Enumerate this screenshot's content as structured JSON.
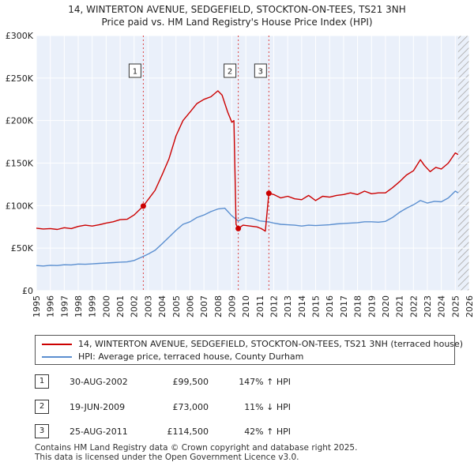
{
  "title": {
    "line1": "14, WINTERTON AVENUE, SEDGEFIELD, STOCKTON-ON-TEES, TS21 3NH",
    "line2": "Price paid vs. HM Land Registry's House Price Index (HPI)"
  },
  "chart_data": {
    "type": "line",
    "x_range": [
      1995,
      2026
    ],
    "ylim": [
      0,
      300000
    ],
    "y_ticks": [
      {
        "value": 0,
        "label": "£0"
      },
      {
        "value": 50000,
        "label": "£50K"
      },
      {
        "value": 100000,
        "label": "£100K"
      },
      {
        "value": 150000,
        "label": "£150K"
      },
      {
        "value": 200000,
        "label": "£200K"
      },
      {
        "value": 250000,
        "label": "£250K"
      },
      {
        "value": 300000,
        "label": "£300K"
      }
    ],
    "x_ticks": [
      "1995",
      "1996",
      "1997",
      "1998",
      "1999",
      "2000",
      "2001",
      "2002",
      "2003",
      "2004",
      "2005",
      "2006",
      "2007",
      "2008",
      "2009",
      "2010",
      "2011",
      "2012",
      "2013",
      "2014",
      "2015",
      "2016",
      "2017",
      "2018",
      "2019",
      "2020",
      "2021",
      "2022",
      "2023",
      "2024",
      "2025",
      "2026"
    ],
    "future_from": 2025.2,
    "series": [
      {
        "name": "14, WINTERTON AVENUE, SEDGEFIELD, STOCKTON-ON-TEES, TS21 3NH (terraced house)",
        "color": "#cc0000",
        "points": [
          [
            1995.0,
            73500
          ],
          [
            1995.5,
            72500
          ],
          [
            1996.0,
            73000
          ],
          [
            1996.5,
            72000
          ],
          [
            1997.0,
            74000
          ],
          [
            1997.5,
            73000
          ],
          [
            1998.0,
            75500
          ],
          [
            1998.5,
            77000
          ],
          [
            1999.0,
            76000
          ],
          [
            1999.5,
            77500
          ],
          [
            2000.0,
            79500
          ],
          [
            2000.5,
            81000
          ],
          [
            2001.0,
            83500
          ],
          [
            2001.5,
            84000
          ],
          [
            2002.0,
            89000
          ],
          [
            2002.66,
            99500
          ],
          [
            2003.0,
            107000
          ],
          [
            2003.5,
            118000
          ],
          [
            2004.0,
            136000
          ],
          [
            2004.5,
            155000
          ],
          [
            2005.0,
            182000
          ],
          [
            2005.5,
            200000
          ],
          [
            2006.0,
            210000
          ],
          [
            2006.5,
            220000
          ],
          [
            2007.0,
            225000
          ],
          [
            2007.5,
            228000
          ],
          [
            2008.0,
            235000
          ],
          [
            2008.3,
            230000
          ],
          [
            2008.7,
            210000
          ],
          [
            2009.0,
            198000
          ],
          [
            2009.15,
            200000
          ],
          [
            2009.3,
            78000
          ],
          [
            2009.46,
            73000
          ],
          [
            2009.8,
            77000
          ],
          [
            2010.3,
            76000
          ],
          [
            2010.8,
            75000
          ],
          [
            2011.1,
            73000
          ],
          [
            2011.4,
            70000
          ],
          [
            2011.65,
            114500
          ],
          [
            2012.0,
            113000
          ],
          [
            2012.5,
            109000
          ],
          [
            2013.0,
            111000
          ],
          [
            2013.5,
            108000
          ],
          [
            2014.0,
            107000
          ],
          [
            2014.5,
            112000
          ],
          [
            2015.0,
            106000
          ],
          [
            2015.5,
            111000
          ],
          [
            2016.0,
            110000
          ],
          [
            2016.5,
            112000
          ],
          [
            2017.0,
            113000
          ],
          [
            2017.5,
            115000
          ],
          [
            2018.0,
            113000
          ],
          [
            2018.5,
            117000
          ],
          [
            2019.0,
            114000
          ],
          [
            2019.5,
            115000
          ],
          [
            2020.0,
            115000
          ],
          [
            2020.5,
            121000
          ],
          [
            2021.0,
            128000
          ],
          [
            2021.5,
            136000
          ],
          [
            2022.0,
            141000
          ],
          [
            2022.5,
            154000
          ],
          [
            2022.8,
            147000
          ],
          [
            2023.2,
            140000
          ],
          [
            2023.6,
            145000
          ],
          [
            2024.0,
            143000
          ],
          [
            2024.5,
            150000
          ],
          [
            2025.0,
            162000
          ],
          [
            2025.2,
            160000
          ]
        ]
      },
      {
        "name": "HPI: Average price, terraced house, County Durham",
        "color": "#5b8fd0",
        "points": [
          [
            1995.0,
            29500
          ],
          [
            1995.5,
            29000
          ],
          [
            1996.0,
            29800
          ],
          [
            1996.5,
            29500
          ],
          [
            1997.0,
            30500
          ],
          [
            1997.5,
            30300
          ],
          [
            1998.0,
            31300
          ],
          [
            1998.5,
            31000
          ],
          [
            1999.0,
            31500
          ],
          [
            1999.5,
            32000
          ],
          [
            2000.0,
            32500
          ],
          [
            2000.5,
            33000
          ],
          [
            2001.0,
            33500
          ],
          [
            2001.5,
            33800
          ],
          [
            2002.0,
            35500
          ],
          [
            2002.66,
            40300
          ],
          [
            2003.0,
            43000
          ],
          [
            2003.5,
            47500
          ],
          [
            2004.0,
            55000
          ],
          [
            2004.5,
            63000
          ],
          [
            2005.0,
            71000
          ],
          [
            2005.5,
            78000
          ],
          [
            2006.0,
            81000
          ],
          [
            2006.5,
            86000
          ],
          [
            2007.0,
            89000
          ],
          [
            2007.5,
            93000
          ],
          [
            2008.0,
            96000
          ],
          [
            2008.5,
            97000
          ],
          [
            2009.0,
            88000
          ],
          [
            2009.46,
            82000
          ],
          [
            2010.0,
            86000
          ],
          [
            2010.5,
            85000
          ],
          [
            2011.0,
            82000
          ],
          [
            2011.65,
            80800
          ],
          [
            2012.0,
            79500
          ],
          [
            2012.5,
            78000
          ],
          [
            2013.0,
            77500
          ],
          [
            2013.5,
            77000
          ],
          [
            2014.0,
            76000
          ],
          [
            2014.5,
            77000
          ],
          [
            2015.0,
            76500
          ],
          [
            2015.5,
            77000
          ],
          [
            2016.0,
            77500
          ],
          [
            2016.5,
            78500
          ],
          [
            2017.0,
            79000
          ],
          [
            2017.5,
            79500
          ],
          [
            2018.0,
            80000
          ],
          [
            2018.5,
            81000
          ],
          [
            2019.0,
            81000
          ],
          [
            2019.5,
            80500
          ],
          [
            2020.0,
            81500
          ],
          [
            2020.5,
            86000
          ],
          [
            2021.0,
            92000
          ],
          [
            2021.5,
            97000
          ],
          [
            2022.0,
            101000
          ],
          [
            2022.5,
            106000
          ],
          [
            2023.0,
            103000
          ],
          [
            2023.5,
            105000
          ],
          [
            2024.0,
            104500
          ],
          [
            2024.5,
            109000
          ],
          [
            2025.0,
            117000
          ],
          [
            2025.2,
            115000
          ]
        ]
      }
    ],
    "transactions": [
      {
        "id": "1",
        "x": 2002.66,
        "price": 99500
      },
      {
        "id": "2",
        "x": 2009.46,
        "price": 73000
      },
      {
        "id": "3",
        "x": 2011.65,
        "price": 114500
      }
    ]
  },
  "legend": {
    "property_label": "14, WINTERTON AVENUE, SEDGEFIELD, STOCKTON-ON-TEES, TS21 3NH (terraced house)",
    "hpi_label": "HPI: Average price, terraced house, County Durham",
    "property_color": "#cc0000",
    "hpi_color": "#5b8fd0"
  },
  "transactions_table": [
    {
      "num": "1",
      "date": "30-AUG-2002",
      "price": "£99,500",
      "hpi": "147% ↑ HPI"
    },
    {
      "num": "2",
      "date": "19-JUN-2009",
      "price": "£73,000",
      "hpi": "11% ↓ HPI"
    },
    {
      "num": "3",
      "date": "25-AUG-2011",
      "price": "£114,500",
      "hpi": "42% ↑ HPI"
    }
  ],
  "footer": {
    "line1": "Contains HM Land Registry data © Crown copyright and database right 2025.",
    "line2": "This data is licensed under the Open Government Licence v3.0."
  }
}
